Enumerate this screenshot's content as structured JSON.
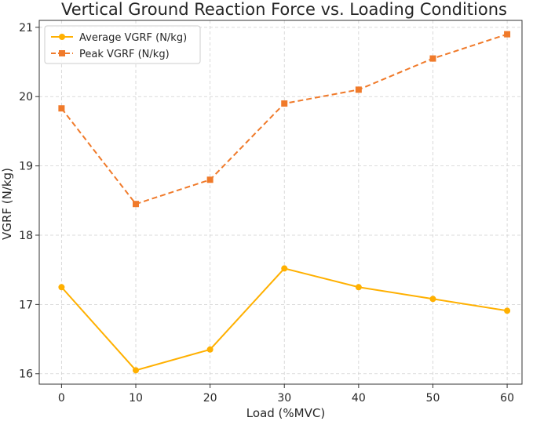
{
  "chart_data": {
    "type": "line",
    "title": "Vertical Ground Reaction Force vs. Loading Conditions",
    "xlabel": "Load (%MVC)",
    "ylabel": "VGRF (N/kg)",
    "x": [
      0,
      10,
      20,
      30,
      40,
      50,
      60
    ],
    "x_ticks": [
      "0",
      "10",
      "20",
      "30",
      "40",
      "50",
      "60"
    ],
    "y_ticks": [
      "16",
      "17",
      "18",
      "19",
      "20",
      "21"
    ],
    "xlim": [
      -3,
      62
    ],
    "ylim": [
      15.85,
      21.1
    ],
    "grid": true,
    "legend_position": "top-left",
    "series": [
      {
        "name": "Average VGRF (N/kg)",
        "values": [
          17.25,
          16.05,
          16.35,
          17.52,
          17.25,
          17.08,
          16.91
        ],
        "color": "#FFB000",
        "line_style": "solid",
        "marker": "circle"
      },
      {
        "name": "Peak VGRF (N/kg)",
        "values": [
          19.83,
          18.45,
          18.8,
          19.9,
          20.1,
          20.55,
          20.9
        ],
        "color": "#F07A2A",
        "line_style": "dashed",
        "marker": "square"
      }
    ]
  }
}
